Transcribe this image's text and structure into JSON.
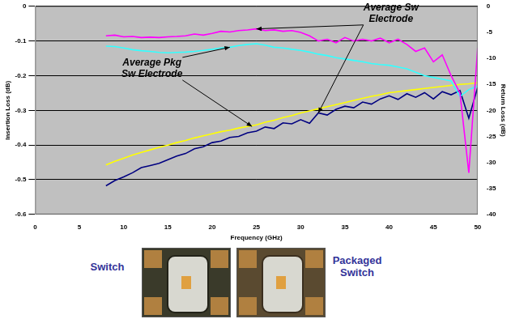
{
  "chart_data": {
    "type": "line",
    "x_label": "Frequency (GHz)",
    "y_label": "Insertion Loss (dB)",
    "y2_label": "Return Loss (dB)",
    "xlim": [
      0,
      50
    ],
    "xticks": [
      0,
      5,
      10,
      15,
      20,
      25,
      30,
      35,
      40,
      45,
      50
    ],
    "ylim": [
      -0.6,
      0
    ],
    "yticks": [
      -0.6,
      -0.5,
      -0.4,
      -0.3,
      -0.2,
      -0.1,
      0
    ],
    "y2lim": [
      -40,
      0
    ],
    "y2ticks": [
      -40,
      -35,
      -30,
      -25,
      -20,
      -15,
      -10,
      -5,
      0
    ],
    "grid": true,
    "x": [
      8,
      9,
      10,
      11,
      12,
      13,
      14,
      15,
      16,
      17,
      18,
      19,
      20,
      21,
      22,
      23,
      24,
      25,
      26,
      27,
      28,
      29,
      30,
      31,
      32,
      33,
      34,
      35,
      36,
      37,
      38,
      39,
      40,
      41,
      42,
      43,
      44,
      45,
      46,
      47,
      48,
      49,
      50
    ],
    "series": [
      {
        "color": "#ff00ff",
        "values": [
          -0.085,
          -0.083,
          -0.088,
          -0.087,
          -0.09,
          -0.089,
          -0.09,
          -0.088,
          -0.087,
          -0.085,
          -0.08,
          -0.083,
          -0.078,
          -0.072,
          -0.074,
          -0.07,
          -0.068,
          -0.065,
          -0.07,
          -0.068,
          -0.072,
          -0.07,
          -0.075,
          -0.085,
          -0.1,
          -0.095,
          -0.105,
          -0.09,
          -0.1,
          -0.095,
          -0.1,
          -0.092,
          -0.105,
          -0.095,
          -0.11,
          -0.13,
          -0.12,
          -0.16,
          -0.14,
          -0.2,
          -0.25,
          -0.48,
          -0.12
        ]
      },
      {
        "color": "#33ffff",
        "values": [
          -0.115,
          -0.116,
          -0.12,
          -0.125,
          -0.128,
          -0.13,
          -0.133,
          -0.134,
          -0.133,
          -0.132,
          -0.13,
          -0.127,
          -0.124,
          -0.12,
          -0.118,
          -0.113,
          -0.11,
          -0.108,
          -0.112,
          -0.118,
          -0.12,
          -0.124,
          -0.127,
          -0.132,
          -0.138,
          -0.142,
          -0.148,
          -0.152,
          -0.156,
          -0.16,
          -0.165,
          -0.168,
          -0.17,
          -0.175,
          -0.18,
          -0.19,
          -0.2,
          -0.205,
          -0.21,
          -0.215,
          -0.26,
          -0.24,
          -0.23
        ]
      },
      {
        "color": "#ffff00",
        "axis": "y2",
        "values": [
          -30.5,
          -29.8,
          -29.2,
          -28.6,
          -28.1,
          -27.6,
          -27.1,
          -26.7,
          -26.2,
          -25.8,
          -25.3,
          -24.9,
          -24.5,
          -24.1,
          -23.8,
          -23.4,
          -23.1,
          -22.8,
          -22.3,
          -21.9,
          -21.4,
          -21,
          -20.5,
          -20.1,
          -19.7,
          -19.3,
          -18.9,
          -18.5,
          -18.1,
          -17.7,
          -17.3,
          -17,
          -16.6,
          -16.4,
          -16.2,
          -16,
          -15.8,
          -15.6,
          -15.4,
          -15.2,
          -15,
          -14.9,
          -14.7
        ]
      },
      {
        "color": "#000080",
        "axis": "y2",
        "values": [
          -34.5,
          -33.5,
          -32.8,
          -32,
          -31,
          -30.6,
          -30.2,
          -29.5,
          -28.8,
          -28.3,
          -27.4,
          -27,
          -26.2,
          -25.9,
          -25.2,
          -25,
          -24.3,
          -24,
          -23.2,
          -23.5,
          -22.4,
          -22.6,
          -21.8,
          -22.5,
          -20.5,
          -20.9,
          -19.8,
          -19.2,
          -19.5,
          -18.4,
          -18.8,
          -17.8,
          -17.2,
          -17.9,
          -16.8,
          -17.5,
          -16.6,
          -17.8,
          -16.4,
          -17,
          -16.2,
          -21.5,
          -15.6
        ]
      }
    ],
    "annotations": [
      {
        "text": [
          "Average Sw",
          "Electrode"
        ],
        "x": 40.2,
        "y": -0.021,
        "arrows": [
          {
            "x": 25,
            "y": -0.065
          },
          {
            "x": 32,
            "y": -20.5,
            "axis": "y2"
          }
        ]
      },
      {
        "text": [
          "Average Pkg",
          "Sw Electrode"
        ],
        "x": 13.2,
        "y": -0.18,
        "arrows": [
          {
            "x": 22,
            "y": -0.118
          },
          {
            "x": 24.5,
            "y": -23.1,
            "axis": "y2"
          }
        ]
      }
    ]
  },
  "photos": [
    {
      "label": "Switch"
    },
    {
      "label": "Packaged Switch"
    }
  ]
}
